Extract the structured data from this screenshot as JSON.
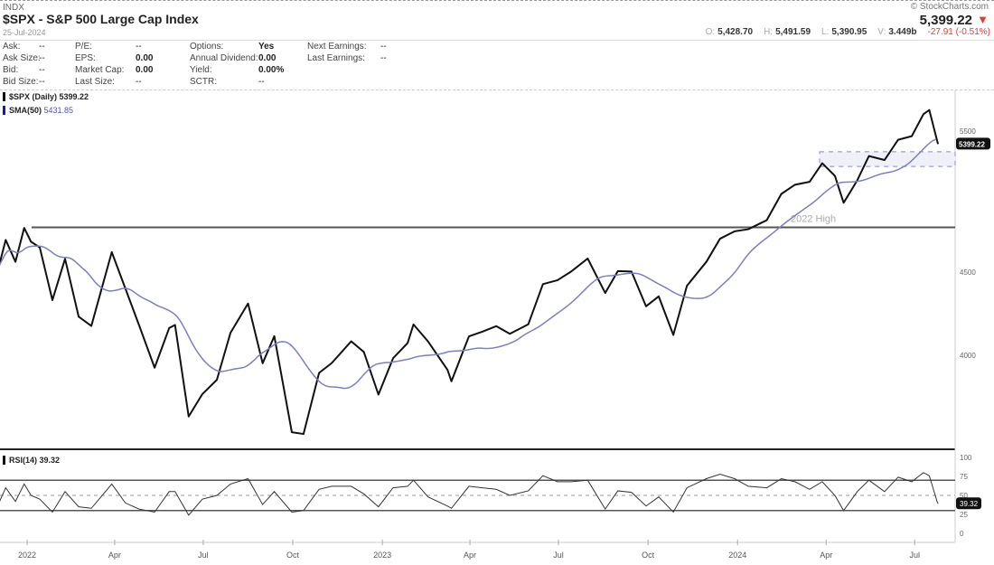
{
  "header": {
    "exchange": "INDX",
    "title": "$SPX - S&P 500 Large Cap Index",
    "date": "25-Jul-2024",
    "brand": "© StockCharts.com",
    "last": "5,399.22",
    "direction_icon": "triangle-down-icon",
    "ohlc": {
      "o_label": "O:",
      "o": "5,428.70",
      "h_label": "H:",
      "h": "5,491.59",
      "l_label": "L:",
      "l": "5,390.95",
      "v_label": "V:",
      "v": "3.449b",
      "change": "-27.91 (-0.51%)"
    }
  },
  "quote": [
    {
      "label": "Ask:",
      "value": "--"
    },
    {
      "label": "Ask Size:",
      "value": "--"
    },
    {
      "label": "Bid:",
      "value": "--"
    },
    {
      "label": "Bid Size:",
      "value": "--"
    },
    {
      "label": "P/E:",
      "value": "--"
    },
    {
      "label": "EPS:",
      "value": "0.00"
    },
    {
      "label": "Market Cap:",
      "value": "0.00"
    },
    {
      "label": "Last Size:",
      "value": "--"
    },
    {
      "label": "Options:",
      "value": "Yes"
    },
    {
      "label": "Annual Dividend:",
      "value": "0.00"
    },
    {
      "label": "Yield:",
      "value": "0.00%"
    },
    {
      "label": "SCTR:",
      "value": "--"
    },
    {
      "label": "Next Earnings:",
      "value": "--"
    },
    {
      "label": "Last Earnings:",
      "value": "--"
    }
  ],
  "legend": {
    "price": "$SPX (Daily) 5399.22",
    "sma_label": "SMA(50)",
    "sma_value": "5431.85",
    "rsi": "RSI(14) 39.32"
  },
  "colors": {
    "price": "#111111",
    "sma": "#7b7fc4",
    "down": "#e53935"
  },
  "chart_data": {
    "type": "line",
    "y_scale": "log",
    "price_ticks": [
      4000,
      4500,
      5500
    ],
    "rsi_ticks": [
      0,
      25,
      50,
      75,
      100
    ],
    "x_ticks": [
      "2022",
      "Apr",
      "Jul",
      "Oct",
      "2023",
      "Apr",
      "Jul",
      "Oct",
      "2024",
      "Apr",
      "Jul"
    ],
    "x_tick_dates": [
      "2022-01-01",
      "2022-04-01",
      "2022-07-01",
      "2022-10-01",
      "2023-01-01",
      "2023-04-01",
      "2023-07-01",
      "2023-10-01",
      "2024-01-01",
      "2024-04-01",
      "2024-07-01"
    ],
    "annotation": {
      "text": "2022 High",
      "value": 4797
    },
    "last_price_label": "5399.22",
    "last_rsi_label": "39.32",
    "dates": [
      "2021-12-03",
      "2021-12-10",
      "2021-12-20",
      "2021-12-29",
      "2022-01-05",
      "2022-01-14",
      "2022-01-27",
      "2022-02-09",
      "2022-02-23",
      "2022-03-08",
      "2022-03-29",
      "2022-04-12",
      "2022-04-26",
      "2022-05-12",
      "2022-05-27",
      "2022-06-02",
      "2022-06-16",
      "2022-06-30",
      "2022-07-15",
      "2022-07-29",
      "2022-08-16",
      "2022-08-31",
      "2022-09-12",
      "2022-09-30",
      "2022-10-12",
      "2022-10-28",
      "2022-11-10",
      "2022-11-30",
      "2022-12-13",
      "2022-12-28",
      "2023-01-12",
      "2023-01-27",
      "2023-02-02",
      "2023-02-17",
      "2023-03-09",
      "2023-03-13",
      "2023-03-31",
      "2023-04-14",
      "2023-04-28",
      "2023-05-12",
      "2023-05-31",
      "2023-06-15",
      "2023-06-30",
      "2023-07-14",
      "2023-07-31",
      "2023-08-18",
      "2023-08-31",
      "2023-09-14",
      "2023-09-29",
      "2023-10-12",
      "2023-10-27",
      "2023-11-10",
      "2023-11-30",
      "2023-12-14",
      "2023-12-29",
      "2024-01-12",
      "2024-01-31",
      "2024-02-15",
      "2024-02-29",
      "2024-03-15",
      "2024-03-28",
      "2024-04-10",
      "2024-04-19",
      "2024-05-03",
      "2024-05-15",
      "2024-05-31",
      "2024-06-14",
      "2024-06-28",
      "2024-07-10",
      "2024-07-16",
      "2024-07-24",
      "2024-07-25"
    ],
    "series": [
      {
        "name": "$SPX (Daily)",
        "values": [
          4538,
          4712,
          4568,
          4793,
          4700,
          4662,
          4326,
          4587,
          4225,
          4170,
          4631,
          4397,
          4175,
          3930,
          4158,
          4176,
          3667,
          3785,
          3863,
          4130,
          4305,
          3955,
          4110,
          3586,
          3577,
          3901,
          3956,
          4080,
          4019,
          3783,
          3983,
          4070,
          4179,
          4079,
          3918,
          3855,
          4109,
          4137,
          4169,
          4124,
          4180,
          4425,
          4450,
          4505,
          4589,
          4370,
          4508,
          4505,
          4288,
          4349,
          4117,
          4415,
          4568,
          4720,
          4770,
          4784,
          4846,
          5030,
          5096,
          5117,
          5254,
          5161,
          4967,
          5128,
          5308,
          5278,
          5432,
          5460,
          5633,
          5667,
          5427,
          5399
        ]
      },
      {
        "name": "RSI(14)",
        "values": [
          40,
          60,
          42,
          65,
          50,
          45,
          28,
          55,
          35,
          33,
          65,
          40,
          32,
          28,
          55,
          55,
          24,
          45,
          50,
          65,
          72,
          38,
          55,
          28,
          30,
          58,
          62,
          62,
          52,
          35,
          60,
          62,
          70,
          48,
          36,
          33,
          62,
          60,
          58,
          50,
          56,
          76,
          68,
          68,
          70,
          32,
          56,
          54,
          36,
          48,
          28,
          60,
          72,
          78,
          72,
          62,
          60,
          72,
          68,
          58,
          68,
          50,
          30,
          55,
          70,
          55,
          74,
          68,
          80,
          76,
          42,
          39
        ]
      }
    ]
  }
}
